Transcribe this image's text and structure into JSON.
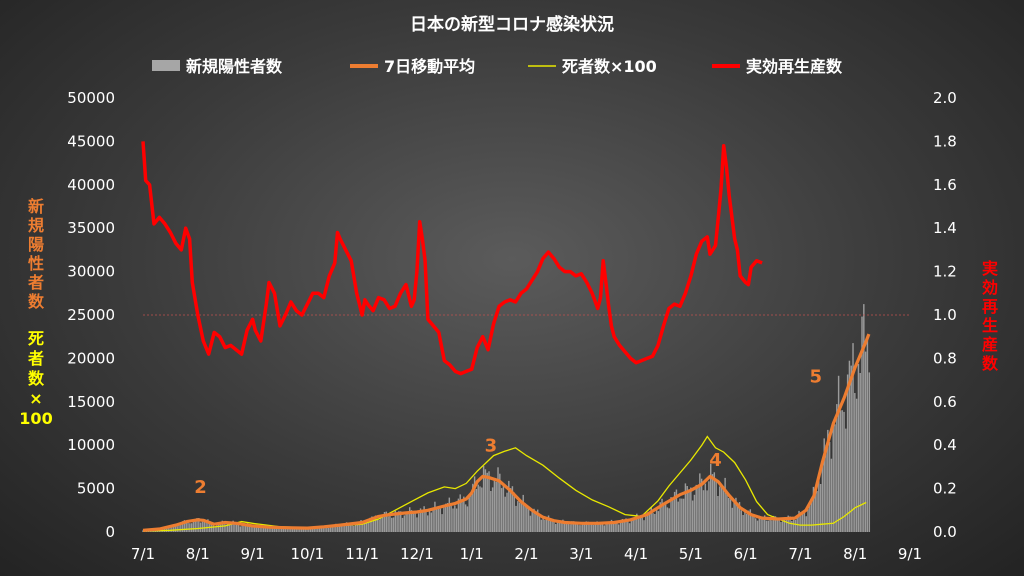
{
  "chart_data": {
    "type": "bar+line",
    "title": "日本の新型コロナ感染状況",
    "legend": [
      {
        "label": "新規陽性者数",
        "color": "#a6a6a6",
        "kind": "bar"
      },
      {
        "label": "7日移動平均",
        "color": "#ed7d31",
        "kind": "line"
      },
      {
        "label": "死者数×100",
        "color": "#e8e800",
        "kind": "thinline"
      },
      {
        "label": "実効再生産数",
        "color": "#ff0000",
        "kind": "line"
      }
    ],
    "legend_position": "top",
    "y_left": {
      "range": [
        0,
        50000
      ],
      "ticks": [
        "0",
        "5000",
        "10000",
        "15000",
        "20000",
        "25000",
        "30000",
        "35000",
        "40000",
        "45000",
        "50000"
      ],
      "label_cases": [
        "新",
        "規",
        "陽",
        "性",
        "者",
        "数"
      ],
      "label_cases_color": "#ed7d31",
      "label_deaths": [
        "死",
        "者",
        "数",
        "×",
        "100"
      ],
      "label_deaths_color": "#ffff00"
    },
    "y_right": {
      "range": [
        0,
        2.0
      ],
      "ticks": [
        "0.0",
        "0.2",
        "0.4",
        "0.6",
        "0.8",
        "1.0",
        "1.2",
        "1.4",
        "1.6",
        "1.8",
        "2.0"
      ],
      "label": [
        "実",
        "効",
        "再",
        "生",
        "産",
        "数"
      ],
      "label_color": "#ff0000",
      "reference_line": 1.0
    },
    "x_ticks": [
      "7/1",
      "8/1",
      "9/1",
      "10/1",
      "11/1",
      "12/1",
      "1/1",
      "2/1",
      "3/1",
      "4/1",
      "5/1",
      "6/1",
      "7/1",
      "8/1",
      "9/1"
    ],
    "x_unit": "month",
    "wave_labels": [
      {
        "text": "2",
        "x": 1.05,
        "y": 4500
      },
      {
        "text": "3",
        "x": 6.35,
        "y": 9300
      },
      {
        "text": "4",
        "x": 10.45,
        "y": 7600
      },
      {
        "text": "5",
        "x": 12.28,
        "y": 17200
      }
    ],
    "rt": [
      [
        0.0,
        1.8
      ],
      [
        0.05,
        1.62
      ],
      [
        0.12,
        1.6
      ],
      [
        0.2,
        1.42
      ],
      [
        0.3,
        1.45
      ],
      [
        0.4,
        1.42
      ],
      [
        0.5,
        1.38
      ],
      [
        0.6,
        1.33
      ],
      [
        0.7,
        1.3
      ],
      [
        0.78,
        1.4
      ],
      [
        0.85,
        1.35
      ],
      [
        0.9,
        1.15
      ],
      [
        1.0,
        1.0
      ],
      [
        1.1,
        0.88
      ],
      [
        1.2,
        0.82
      ],
      [
        1.3,
        0.92
      ],
      [
        1.4,
        0.9
      ],
      [
        1.5,
        0.85
      ],
      [
        1.6,
        0.86
      ],
      [
        1.7,
        0.84
      ],
      [
        1.8,
        0.82
      ],
      [
        1.9,
        0.93
      ],
      [
        2.0,
        0.98
      ],
      [
        2.05,
        0.93
      ],
      [
        2.15,
        0.88
      ],
      [
        2.25,
        1.05
      ],
      [
        2.3,
        1.15
      ],
      [
        2.4,
        1.1
      ],
      [
        2.5,
        0.95
      ],
      [
        2.6,
        1.0
      ],
      [
        2.7,
        1.06
      ],
      [
        2.8,
        1.02
      ],
      [
        2.9,
        1.0
      ],
      [
        3.0,
        1.05
      ],
      [
        3.1,
        1.1
      ],
      [
        3.2,
        1.1
      ],
      [
        3.3,
        1.08
      ],
      [
        3.4,
        1.18
      ],
      [
        3.5,
        1.24
      ],
      [
        3.55,
        1.38
      ],
      [
        3.6,
        1.35
      ],
      [
        3.7,
        1.3
      ],
      [
        3.8,
        1.25
      ],
      [
        3.9,
        1.1
      ],
      [
        4.0,
        1.0
      ],
      [
        4.05,
        1.07
      ],
      [
        4.1,
        1.05
      ],
      [
        4.2,
        1.02
      ],
      [
        4.3,
        1.08
      ],
      [
        4.4,
        1.07
      ],
      [
        4.5,
        1.03
      ],
      [
        4.6,
        1.04
      ],
      [
        4.7,
        1.1
      ],
      [
        4.8,
        1.14
      ],
      [
        4.85,
        1.09
      ],
      [
        4.9,
        1.04
      ],
      [
        4.95,
        1.07
      ],
      [
        5.0,
        1.2
      ],
      [
        5.05,
        1.43
      ],
      [
        5.1,
        1.35
      ],
      [
        5.15,
        1.25
      ],
      [
        5.2,
        0.98
      ],
      [
        5.3,
        0.95
      ],
      [
        5.4,
        0.92
      ],
      [
        5.5,
        0.79
      ],
      [
        5.6,
        0.77
      ],
      [
        5.7,
        0.74
      ],
      [
        5.8,
        0.73
      ],
      [
        5.9,
        0.74
      ],
      [
        6.0,
        0.75
      ],
      [
        6.1,
        0.85
      ],
      [
        6.2,
        0.9
      ],
      [
        6.3,
        0.84
      ],
      [
        6.4,
        0.96
      ],
      [
        6.5,
        1.04
      ],
      [
        6.6,
        1.06
      ],
      [
        6.7,
        1.07
      ],
      [
        6.8,
        1.06
      ],
      [
        6.9,
        1.1
      ],
      [
        7.0,
        1.12
      ],
      [
        7.1,
        1.16
      ],
      [
        7.2,
        1.2
      ],
      [
        7.3,
        1.26
      ],
      [
        7.4,
        1.29
      ],
      [
        7.5,
        1.26
      ],
      [
        7.6,
        1.22
      ],
      [
        7.7,
        1.2
      ],
      [
        7.8,
        1.2
      ],
      [
        7.9,
        1.18
      ],
      [
        8.0,
        1.19
      ],
      [
        8.1,
        1.15
      ],
      [
        8.2,
        1.1
      ],
      [
        8.3,
        1.03
      ],
      [
        8.35,
        1.08
      ],
      [
        8.4,
        1.25
      ],
      [
        8.45,
        1.15
      ],
      [
        8.5,
        1.04
      ],
      [
        8.55,
        0.95
      ],
      [
        8.6,
        0.9
      ],
      [
        8.7,
        0.86
      ],
      [
        8.8,
        0.83
      ],
      [
        8.9,
        0.8
      ],
      [
        9.0,
        0.78
      ],
      [
        9.1,
        0.79
      ],
      [
        9.2,
        0.8
      ],
      [
        9.3,
        0.81
      ],
      [
        9.4,
        0.86
      ],
      [
        9.5,
        0.95
      ],
      [
        9.6,
        1.03
      ],
      [
        9.7,
        1.05
      ],
      [
        9.8,
        1.04
      ],
      [
        9.9,
        1.1
      ],
      [
        10.0,
        1.18
      ],
      [
        10.1,
        1.28
      ],
      [
        10.2,
        1.34
      ],
      [
        10.3,
        1.36
      ],
      [
        10.35,
        1.28
      ],
      [
        10.45,
        1.32
      ],
      [
        10.5,
        1.45
      ],
      [
        10.55,
        1.58
      ],
      [
        10.6,
        1.78
      ],
      [
        10.65,
        1.68
      ],
      [
        10.7,
        1.55
      ],
      [
        10.8,
        1.35
      ],
      [
        10.85,
        1.3
      ],
      [
        10.9,
        1.18
      ],
      [
        11.0,
        1.15
      ],
      [
        11.05,
        1.14
      ],
      [
        11.1,
        1.22
      ],
      [
        11.2,
        1.25
      ],
      [
        11.3,
        1.24
      ]
    ],
    "cases_avg": [
      [
        0.0,
        200
      ],
      [
        0.3,
        350
      ],
      [
        0.6,
        800
      ],
      [
        0.8,
        1200
      ],
      [
        1.0,
        1400
      ],
      [
        1.1,
        1350
      ],
      [
        1.3,
        900
      ],
      [
        1.5,
        1100
      ],
      [
        1.7,
        1000
      ],
      [
        2.0,
        700
      ],
      [
        2.3,
        550
      ],
      [
        2.6,
        500
      ],
      [
        3.0,
        450
      ],
      [
        3.3,
        600
      ],
      [
        3.6,
        800
      ],
      [
        4.0,
        1100
      ],
      [
        4.3,
        1800
      ],
      [
        4.5,
        2000
      ],
      [
        4.8,
        2200
      ],
      [
        5.0,
        2300
      ],
      [
        5.2,
        2500
      ],
      [
        5.5,
        3000
      ],
      [
        5.7,
        3300
      ],
      [
        5.9,
        3800
      ],
      [
        6.0,
        4500
      ],
      [
        6.1,
        5800
      ],
      [
        6.2,
        6400
      ],
      [
        6.3,
        6300
      ],
      [
        6.5,
        5900
      ],
      [
        6.7,
        4800
      ],
      [
        6.9,
        3500
      ],
      [
        7.1,
        2500
      ],
      [
        7.3,
        1700
      ],
      [
        7.5,
        1300
      ],
      [
        7.7,
        1100
      ],
      [
        8.0,
        1000
      ],
      [
        8.3,
        1000
      ],
      [
        8.6,
        1100
      ],
      [
        8.9,
        1400
      ],
      [
        9.2,
        2000
      ],
      [
        9.5,
        3200
      ],
      [
        9.8,
        4300
      ],
      [
        10.0,
        4800
      ],
      [
        10.2,
        5500
      ],
      [
        10.35,
        6400
      ],
      [
        10.5,
        5800
      ],
      [
        10.7,
        4200
      ],
      [
        10.9,
        2800
      ],
      [
        11.1,
        2000
      ],
      [
        11.3,
        1600
      ],
      [
        11.6,
        1500
      ],
      [
        11.9,
        1600
      ],
      [
        12.1,
        2500
      ],
      [
        12.25,
        4200
      ],
      [
        12.4,
        8000
      ],
      [
        12.6,
        12500
      ],
      [
        12.8,
        15500
      ],
      [
        13.0,
        19000
      ],
      [
        13.2,
        22000
      ],
      [
        13.25,
        22800
      ]
    ],
    "deaths_x100": [
      [
        0.0,
        100
      ],
      [
        0.5,
        200
      ],
      [
        1.0,
        400
      ],
      [
        1.5,
        700
      ],
      [
        1.8,
        1200
      ],
      [
        2.0,
        1000
      ],
      [
        2.5,
        600
      ],
      [
        3.0,
        500
      ],
      [
        3.5,
        700
      ],
      [
        4.0,
        900
      ],
      [
        4.3,
        1500
      ],
      [
        4.6,
        2500
      ],
      [
        4.9,
        3500
      ],
      [
        5.2,
        4500
      ],
      [
        5.5,
        5200
      ],
      [
        5.7,
        5000
      ],
      [
        5.9,
        5600
      ],
      [
        6.1,
        7000
      ],
      [
        6.4,
        8800
      ],
      [
        6.6,
        9300
      ],
      [
        6.8,
        9700
      ],
      [
        7.0,
        8800
      ],
      [
        7.3,
        7700
      ],
      [
        7.6,
        6200
      ],
      [
        7.9,
        4800
      ],
      [
        8.2,
        3700
      ],
      [
        8.5,
        2900
      ],
      [
        8.8,
        2000
      ],
      [
        9.1,
        1800
      ],
      [
        9.4,
        3600
      ],
      [
        9.6,
        5300
      ],
      [
        9.8,
        6800
      ],
      [
        10.0,
        8300
      ],
      [
        10.2,
        10000
      ],
      [
        10.3,
        11000
      ],
      [
        10.45,
        9700
      ],
      [
        10.6,
        9200
      ],
      [
        10.8,
        8000
      ],
      [
        11.0,
        6000
      ],
      [
        11.2,
        3500
      ],
      [
        11.4,
        2000
      ],
      [
        11.6,
        1500
      ],
      [
        11.8,
        1000
      ],
      [
        12.0,
        800
      ],
      [
        12.2,
        800
      ],
      [
        12.4,
        900
      ],
      [
        12.6,
        1000
      ],
      [
        12.8,
        1800
      ],
      [
        13.0,
        2800
      ],
      [
        13.2,
        3400
      ]
    ]
  }
}
